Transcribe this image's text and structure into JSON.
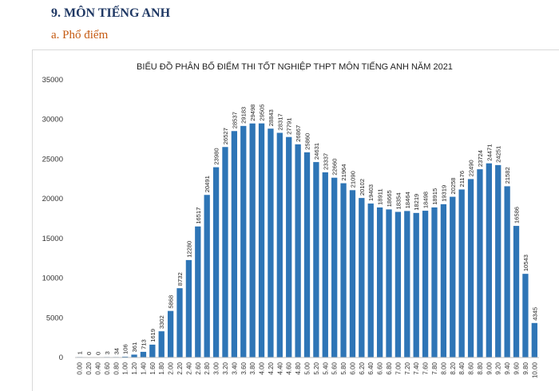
{
  "section": {
    "heading": "9.  MÔN TIẾNG ANH",
    "subheading": "a.  Phổ điểm"
  },
  "chart_data": {
    "type": "bar",
    "title": "BIỂU ĐỒ PHÂN BỐ ĐIỂM THI TỐT NGHIỆP THPT MÔN TIẾNG ANH NĂM 2021",
    "xlabel": "",
    "ylabel": "",
    "ylim": [
      0,
      35000
    ],
    "yticks": [
      0,
      5000,
      10000,
      15000,
      20000,
      25000,
      30000,
      35000
    ],
    "grid": false,
    "bar_color": "#2e75b6",
    "categories": [
      "0.00",
      "0.20",
      "0.40",
      "0.60",
      "0.80",
      "1.00",
      "1.20",
      "1.40",
      "1.60",
      "1.80",
      "2.00",
      "2.20",
      "2.40",
      "2.60",
      "2.80",
      "3.00",
      "3.20",
      "3.40",
      "3.60",
      "3.80",
      "4.00",
      "4.20",
      "4.40",
      "4.60",
      "4.80",
      "5.00",
      "5.20",
      "5.40",
      "5.60",
      "5.80",
      "6.00",
      "6.20",
      "6.40",
      "6.60",
      "6.80",
      "7.00",
      "7.20",
      "7.40",
      "7.60",
      "7.80",
      "8.00",
      "8.20",
      "8.40",
      "8.60",
      "8.80",
      "9.00",
      "9.20",
      "9.40",
      "9.60",
      "9.80",
      "10.00"
    ],
    "values": [
      1,
      0,
      0,
      3,
      34,
      106,
      361,
      713,
      1619,
      3302,
      5868,
      8732,
      12280,
      16517,
      20491,
      23980,
      26527,
      28537,
      29183,
      29498,
      29505,
      28843,
      28317,
      27791,
      26867,
      25860,
      24631,
      23337,
      22660,
      21964,
      21090,
      20102,
      19403,
      18911,
      18665,
      18354,
      18464,
      18219,
      18498,
      18915,
      19319,
      20258,
      21176,
      22490,
      23724,
      24471,
      24251,
      21582,
      16586,
      10543,
      4345
    ]
  }
}
